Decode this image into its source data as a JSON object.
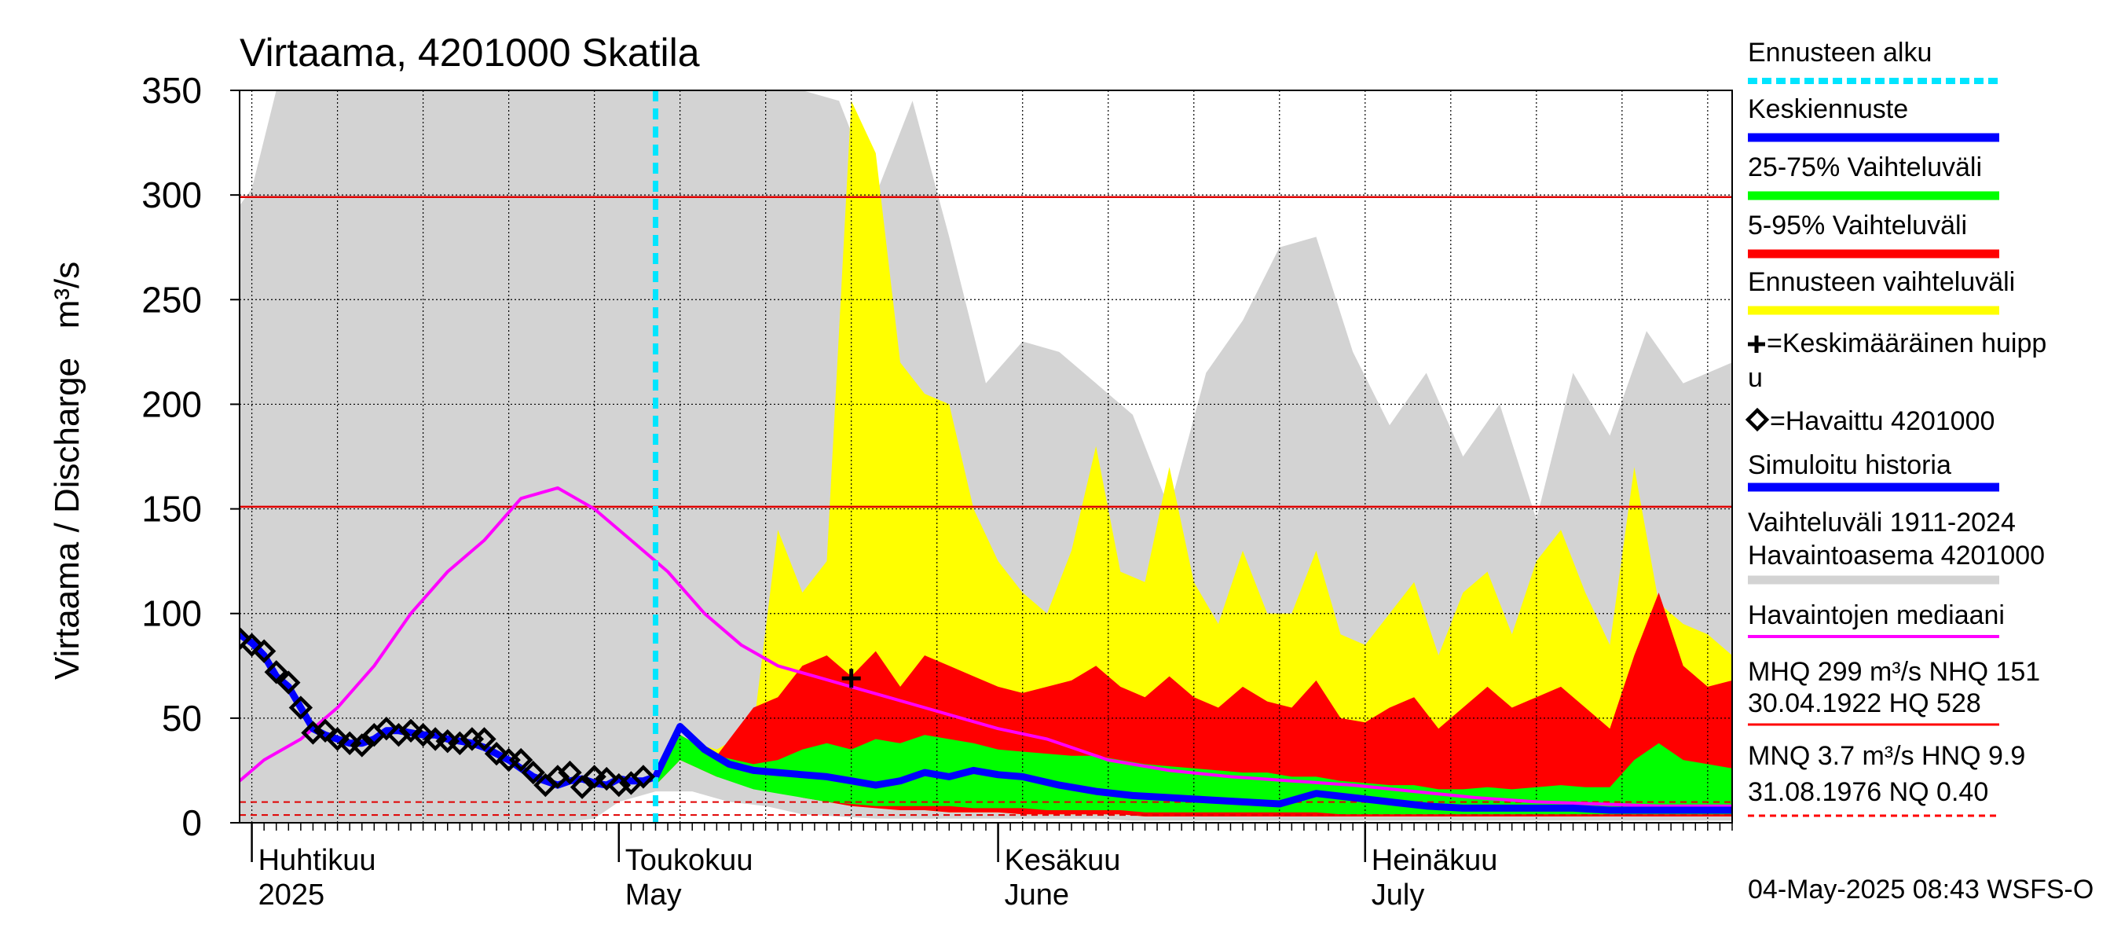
{
  "chart_data": {
    "type": "area",
    "title": "Virtaama, 4201000 Skatila",
    "ylabel": "Virtaama / Discharge   m³/s",
    "ylim": [
      0,
      350
    ],
    "yticks": [
      0,
      50,
      100,
      150,
      200,
      250,
      300,
      350
    ],
    "ytick_labels": [
      "0",
      "50",
      "100",
      "150",
      "200",
      "250",
      "300",
      "350"
    ],
    "x_range": [
      "2025-03-31",
      "2025-07-31"
    ],
    "grid": true,
    "legend_position": "right",
    "month_labels": [
      {
        "fi": "Huhtikuu",
        "en": "2025",
        "date": "2025-04-01"
      },
      {
        "fi": "Toukokuu",
        "en": "May",
        "date": "2025-05-01"
      },
      {
        "fi": "Kesäkuu",
        "en": "June",
        "date": "2025-06-01"
      },
      {
        "fi": "Heinäkuu",
        "en": "July",
        "date": "2025-07-01"
      }
    ],
    "reference_lines": [
      {
        "value": 299,
        "color": "#e00000",
        "style": "solid"
      },
      {
        "value": 151,
        "color": "#e00000",
        "style": "solid"
      },
      {
        "value": 9.9,
        "color": "#e00000",
        "style": "dashed"
      },
      {
        "value": 3.7,
        "color": "#e00000",
        "style": "dashed"
      }
    ],
    "forecast_start": "2025-05-04",
    "series": [
      {
        "name": "Vaihteluväli 1911-2024 Havaintoasema 4201000",
        "kind": "band",
        "color": "#d3d3d3",
        "x": [
          "2025-03-31",
          "2025-04-01",
          "2025-04-03",
          "2025-04-05",
          "2025-04-08",
          "2025-04-11",
          "2025-04-14",
          "2025-04-17",
          "2025-04-20",
          "2025-04-23",
          "2025-04-26",
          "2025-04-29",
          "2025-05-01",
          "2025-05-04",
          "2025-05-07",
          "2025-05-10",
          "2025-05-13",
          "2025-05-16",
          "2025-05-19",
          "2025-05-22",
          "2025-05-25",
          "2025-05-28",
          "2025-05-31",
          "2025-06-03",
          "2025-06-06",
          "2025-06-09",
          "2025-06-12",
          "2025-06-15",
          "2025-06-18",
          "2025-06-21",
          "2025-06-24",
          "2025-06-27",
          "2025-06-30",
          "2025-07-03",
          "2025-07-06",
          "2025-07-09",
          "2025-07-12",
          "2025-07-15",
          "2025-07-18",
          "2025-07-21",
          "2025-07-24",
          "2025-07-27",
          "2025-07-31"
        ],
        "high": [
          295,
          303,
          350,
          350,
          350,
          350,
          350,
          350,
          350,
          350,
          350,
          350,
          350,
          350,
          350,
          350,
          350,
          350,
          345,
          300,
          345,
          280,
          210,
          230,
          225,
          210,
          195,
          150,
          215,
          240,
          275,
          280,
          225,
          190,
          215,
          175,
          200,
          145,
          215,
          185,
          235,
          210,
          220
        ],
        "low": [
          0,
          0,
          0,
          0,
          0,
          0,
          0,
          0,
          0,
          0,
          0,
          2,
          10,
          15,
          15,
          10,
          8,
          4,
          3,
          2,
          2,
          2,
          2,
          2,
          2,
          2,
          1,
          1,
          1,
          1,
          1,
          1,
          1,
          1,
          1,
          1,
          1,
          1,
          1,
          1,
          1,
          1,
          1
        ]
      },
      {
        "name": "Ennusteen vaihteluväli",
        "kind": "band",
        "color": "#ffff00",
        "x": [
          "2025-05-04",
          "2025-05-06",
          "2025-05-09",
          "2025-05-12",
          "2025-05-14",
          "2025-05-16",
          "2025-05-18",
          "2025-05-20",
          "2025-05-22",
          "2025-05-24",
          "2025-05-26",
          "2025-05-28",
          "2025-05-30",
          "2025-06-01",
          "2025-06-03",
          "2025-06-05",
          "2025-06-07",
          "2025-06-09",
          "2025-06-11",
          "2025-06-13",
          "2025-06-15",
          "2025-06-17",
          "2025-06-19",
          "2025-06-21",
          "2025-06-23",
          "2025-06-25",
          "2025-06-27",
          "2025-06-29",
          "2025-07-01",
          "2025-07-03",
          "2025-07-05",
          "2025-07-07",
          "2025-07-09",
          "2025-07-11",
          "2025-07-13",
          "2025-07-15",
          "2025-07-17",
          "2025-07-19",
          "2025-07-21",
          "2025-07-23",
          "2025-07-25",
          "2025-07-27",
          "2025-07-29",
          "2025-07-31"
        ],
        "high": [
          20,
          40,
          35,
          45,
          140,
          110,
          125,
          345,
          320,
          220,
          205,
          200,
          150,
          125,
          110,
          100,
          130,
          180,
          120,
          115,
          170,
          115,
          95,
          130,
          100,
          100,
          130,
          90,
          85,
          100,
          115,
          80,
          110,
          120,
          90,
          125,
          140,
          110,
          85,
          170,
          105,
          95,
          90,
          80
        ],
        "low": [
          18,
          30,
          22,
          18,
          15,
          12,
          10,
          8,
          7,
          6,
          6,
          5,
          5,
          5,
          4,
          4,
          4,
          4,
          4,
          3,
          3,
          3,
          3,
          3,
          3,
          3,
          3,
          3,
          3,
          3,
          3,
          3,
          3,
          3,
          3,
          3,
          3,
          3,
          3,
          3,
          3,
          3,
          3,
          3
        ]
      },
      {
        "name": "5-95% Vaihteluväli",
        "kind": "band",
        "color": "#ff0000",
        "x": [
          "2025-05-04",
          "2025-05-06",
          "2025-05-09",
          "2025-05-12",
          "2025-05-14",
          "2025-05-16",
          "2025-05-18",
          "2025-05-20",
          "2025-05-22",
          "2025-05-24",
          "2025-05-26",
          "2025-05-28",
          "2025-05-30",
          "2025-06-01",
          "2025-06-03",
          "2025-06-05",
          "2025-06-07",
          "2025-06-09",
          "2025-06-11",
          "2025-06-13",
          "2025-06-15",
          "2025-06-17",
          "2025-06-19",
          "2025-06-21",
          "2025-06-23",
          "2025-06-25",
          "2025-06-27",
          "2025-06-29",
          "2025-07-01",
          "2025-07-03",
          "2025-07-05",
          "2025-07-07",
          "2025-07-09",
          "2025-07-11",
          "2025-07-13",
          "2025-07-15",
          "2025-07-17",
          "2025-07-19",
          "2025-07-21",
          "2025-07-23",
          "2025-07-25",
          "2025-07-27",
          "2025-07-29",
          "2025-07-31"
        ],
        "high": [
          20,
          42,
          32,
          55,
          60,
          75,
          80,
          70,
          82,
          65,
          80,
          75,
          70,
          65,
          62,
          65,
          68,
          75,
          65,
          60,
          70,
          60,
          55,
          65,
          58,
          55,
          68,
          50,
          48,
          55,
          60,
          45,
          55,
          65,
          55,
          60,
          65,
          55,
          45,
          80,
          110,
          75,
          65,
          68
        ],
        "low": [
          18,
          30,
          22,
          18,
          15,
          12,
          10,
          8,
          7,
          6,
          6,
          5,
          5,
          5,
          4,
          4,
          4,
          4,
          4,
          3,
          3,
          3,
          3,
          3,
          3,
          3,
          3,
          3,
          3,
          3,
          3,
          3,
          3,
          3,
          3,
          3,
          3,
          3,
          3,
          3,
          3,
          3,
          3,
          3
        ]
      },
      {
        "name": "25-75% Vaihteluväli",
        "kind": "band",
        "color": "#00ff00",
        "x": [
          "2025-05-04",
          "2025-05-06",
          "2025-05-09",
          "2025-05-12",
          "2025-05-14",
          "2025-05-16",
          "2025-05-18",
          "2025-05-20",
          "2025-05-22",
          "2025-05-24",
          "2025-05-26",
          "2025-05-28",
          "2025-05-30",
          "2025-06-01",
          "2025-06-03",
          "2025-06-05",
          "2025-06-07",
          "2025-06-09",
          "2025-06-11",
          "2025-06-13",
          "2025-06-15",
          "2025-06-17",
          "2025-06-19",
          "2025-06-21",
          "2025-06-23",
          "2025-06-25",
          "2025-06-27",
          "2025-06-29",
          "2025-07-01",
          "2025-07-03",
          "2025-07-05",
          "2025-07-07",
          "2025-07-09",
          "2025-07-11",
          "2025-07-13",
          "2025-07-15",
          "2025-07-17",
          "2025-07-19",
          "2025-07-21",
          "2025-07-23",
          "2025-07-25",
          "2025-07-27",
          "2025-07-29",
          "2025-07-31"
        ],
        "high": [
          20,
          42,
          32,
          28,
          30,
          35,
          38,
          35,
          40,
          38,
          42,
          40,
          38,
          35,
          34,
          33,
          32,
          32,
          30,
          28,
          27,
          26,
          25,
          24,
          24,
          22,
          22,
          20,
          19,
          18,
          18,
          16,
          16,
          17,
          16,
          17,
          18,
          17,
          17,
          30,
          38,
          30,
          28,
          26
        ],
        "low": [
          18,
          30,
          22,
          16,
          14,
          12,
          10,
          9,
          8,
          8,
          8,
          8,
          7,
          7,
          7,
          6,
          6,
          6,
          6,
          5,
          5,
          5,
          5,
          5,
          5,
          5,
          5,
          4,
          4,
          4,
          4,
          4,
          4,
          4,
          4,
          4,
          4,
          4,
          4,
          4,
          4,
          4,
          4,
          4
        ]
      },
      {
        "name": "Havaintojen mediaani",
        "kind": "line",
        "color": "#ff00ff",
        "x": [
          "2025-03-31",
          "2025-04-02",
          "2025-04-05",
          "2025-04-08",
          "2025-04-11",
          "2025-04-14",
          "2025-04-17",
          "2025-04-20",
          "2025-04-23",
          "2025-04-26",
          "2025-04-29",
          "2025-05-02",
          "2025-05-05",
          "2025-05-08",
          "2025-05-11",
          "2025-05-14",
          "2025-05-17",
          "2025-05-20",
          "2025-05-23",
          "2025-05-26",
          "2025-05-29",
          "2025-06-01",
          "2025-06-05",
          "2025-06-10",
          "2025-06-15",
          "2025-06-20",
          "2025-06-25",
          "2025-06-30",
          "2025-07-05",
          "2025-07-10",
          "2025-07-15",
          "2025-07-20",
          "2025-07-25",
          "2025-07-31"
        ],
        "values": [
          20,
          30,
          40,
          55,
          75,
          100,
          120,
          135,
          155,
          160,
          150,
          135,
          120,
          100,
          85,
          75,
          70,
          65,
          60,
          55,
          50,
          45,
          40,
          30,
          25,
          22,
          20,
          18,
          15,
          12,
          10,
          9,
          8,
          8
        ]
      },
      {
        "name": "Keskiennuste",
        "kind": "line",
        "color": "#0000ff",
        "x": [
          "2025-05-04",
          "2025-05-06",
          "2025-05-08",
          "2025-05-10",
          "2025-05-12",
          "2025-05-14",
          "2025-05-16",
          "2025-05-18",
          "2025-05-20",
          "2025-05-22",
          "2025-05-24",
          "2025-05-26",
          "2025-05-28",
          "2025-05-30",
          "2025-06-01",
          "2025-06-03",
          "2025-06-06",
          "2025-06-09",
          "2025-06-12",
          "2025-06-15",
          "2025-06-18",
          "2025-06-21",
          "2025-06-24",
          "2025-06-27",
          "2025-06-30",
          "2025-07-03",
          "2025-07-06",
          "2025-07-09",
          "2025-07-12",
          "2025-07-15",
          "2025-07-18",
          "2025-07-21",
          "2025-07-24",
          "2025-07-27",
          "2025-07-31"
        ],
        "values": [
          22,
          46,
          35,
          28,
          25,
          24,
          23,
          22,
          20,
          18,
          20,
          24,
          22,
          25,
          23,
          22,
          18,
          15,
          13,
          12,
          11,
          10,
          9,
          14,
          12,
          10,
          8,
          7,
          7,
          7,
          7,
          6,
          6,
          6,
          6
        ]
      },
      {
        "name": "Simuloitu historia",
        "kind": "line",
        "color": "#0000ff",
        "x": [
          "2025-03-31",
          "2025-04-01",
          "2025-04-02",
          "2025-04-03",
          "2025-04-04",
          "2025-04-05",
          "2025-04-06",
          "2025-04-07",
          "2025-04-08",
          "2025-04-09",
          "2025-04-10",
          "2025-04-11",
          "2025-04-12",
          "2025-04-13",
          "2025-04-14",
          "2025-04-15",
          "2025-04-16",
          "2025-04-17",
          "2025-04-18",
          "2025-04-19",
          "2025-04-20",
          "2025-04-21",
          "2025-04-22",
          "2025-04-23",
          "2025-04-24",
          "2025-04-25",
          "2025-04-26",
          "2025-04-27",
          "2025-04-28",
          "2025-04-29",
          "2025-04-30",
          "2025-05-01",
          "2025-05-02",
          "2025-05-03",
          "2025-05-04"
        ],
        "values": [
          90,
          86,
          80,
          70,
          65,
          55,
          45,
          42,
          40,
          38,
          38,
          40,
          44,
          44,
          43,
          42,
          42,
          40,
          39,
          38,
          36,
          33,
          30,
          26,
          22,
          20,
          18,
          20,
          21,
          19,
          18,
          21,
          20,
          20,
          22
        ]
      },
      {
        "name": "Havaittu 4201000",
        "kind": "markers",
        "color": "#000000",
        "x": [
          "2025-03-31",
          "2025-04-01",
          "2025-04-02",
          "2025-04-03",
          "2025-04-04",
          "2025-04-05",
          "2025-04-06",
          "2025-04-07",
          "2025-04-08",
          "2025-04-09",
          "2025-04-10",
          "2025-04-11",
          "2025-04-12",
          "2025-04-13",
          "2025-04-14",
          "2025-04-15",
          "2025-04-16",
          "2025-04-17",
          "2025-04-18",
          "2025-04-19",
          "2025-04-20",
          "2025-04-21",
          "2025-04-22",
          "2025-04-23",
          "2025-04-24",
          "2025-04-25",
          "2025-04-26",
          "2025-04-27",
          "2025-04-28",
          "2025-04-29",
          "2025-04-30",
          "2025-05-01",
          "2025-05-02",
          "2025-05-03"
        ],
        "values": [
          88,
          85,
          82,
          72,
          67,
          55,
          43,
          44,
          40,
          38,
          37,
          42,
          45,
          42,
          44,
          42,
          40,
          39,
          38,
          40,
          40,
          33,
          30,
          30,
          24,
          18,
          22,
          24,
          17,
          22,
          21,
          18,
          19,
          22
        ]
      },
      {
        "name": "Keskimääräinen huippu",
        "kind": "marker",
        "color": "#000000",
        "x": [
          "2025-05-20"
        ],
        "values": [
          69
        ]
      }
    ]
  },
  "legend": {
    "items": [
      {
        "label": "Ennusteen alku",
        "swatch": "dash",
        "color": "#00e5ff"
      },
      {
        "label": "Keskiennuste",
        "swatch": "bar",
        "color": "#0000ff"
      },
      {
        "label": "25-75% Vaihteluväli",
        "swatch": "bar",
        "color": "#00ff00"
      },
      {
        "label": "5-95% Vaihteluväli",
        "swatch": "bar",
        "color": "#ff0000"
      },
      {
        "label": "Ennusteen vaihteluväli",
        "swatch": "bar",
        "color": "#ffff00"
      }
    ],
    "peak_label_1": "=Keskimääräinen huipp",
    "peak_label_2": "u",
    "observed_label": "=Havaittu 4201000",
    "simulated_label": "Simuloitu historia",
    "range_label_1": "Vaihteluväli 1911-2024",
    "range_label_2": " Havaintoasema 4201000",
    "median_label": "Havaintojen mediaani",
    "stats_line_1": "MHQ  299 m³/s NHQ  151",
    "stats_line_2": "30.04.1922 HQ  528",
    "stats_line_3": "MNQ  3.7 m³/s HNQ  9.9",
    "stats_line_4": "31.08.1976 NQ 0.40",
    "colors": {
      "simulated": "#0000ff",
      "range": "#d3d3d3",
      "median": "#ff00ff",
      "red": "#ff0000"
    }
  },
  "footer": {
    "timestamp": "04-May-2025 08:43 WSFS-O"
  }
}
